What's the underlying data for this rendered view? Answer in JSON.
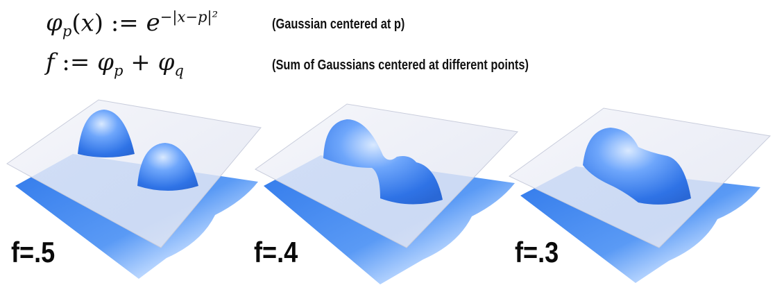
{
  "equations": {
    "gaussian": "φp(x) := e^−|x−p|²",
    "sum": "f := φp + φq"
  },
  "captions": {
    "gaussian": "(Gaussian centered at p)",
    "sum": "(Sum of Gaussians centered at different points)"
  },
  "panels": [
    {
      "label": "f=.5",
      "level": 0.5
    },
    {
      "label": "f=.4",
      "level": 0.4
    },
    {
      "label": "f=.3",
      "level": 0.3
    }
  ],
  "colors": {
    "surface": "#3d86f2",
    "surface_light": "#8fbcff",
    "plane": "#e6e9f4"
  }
}
